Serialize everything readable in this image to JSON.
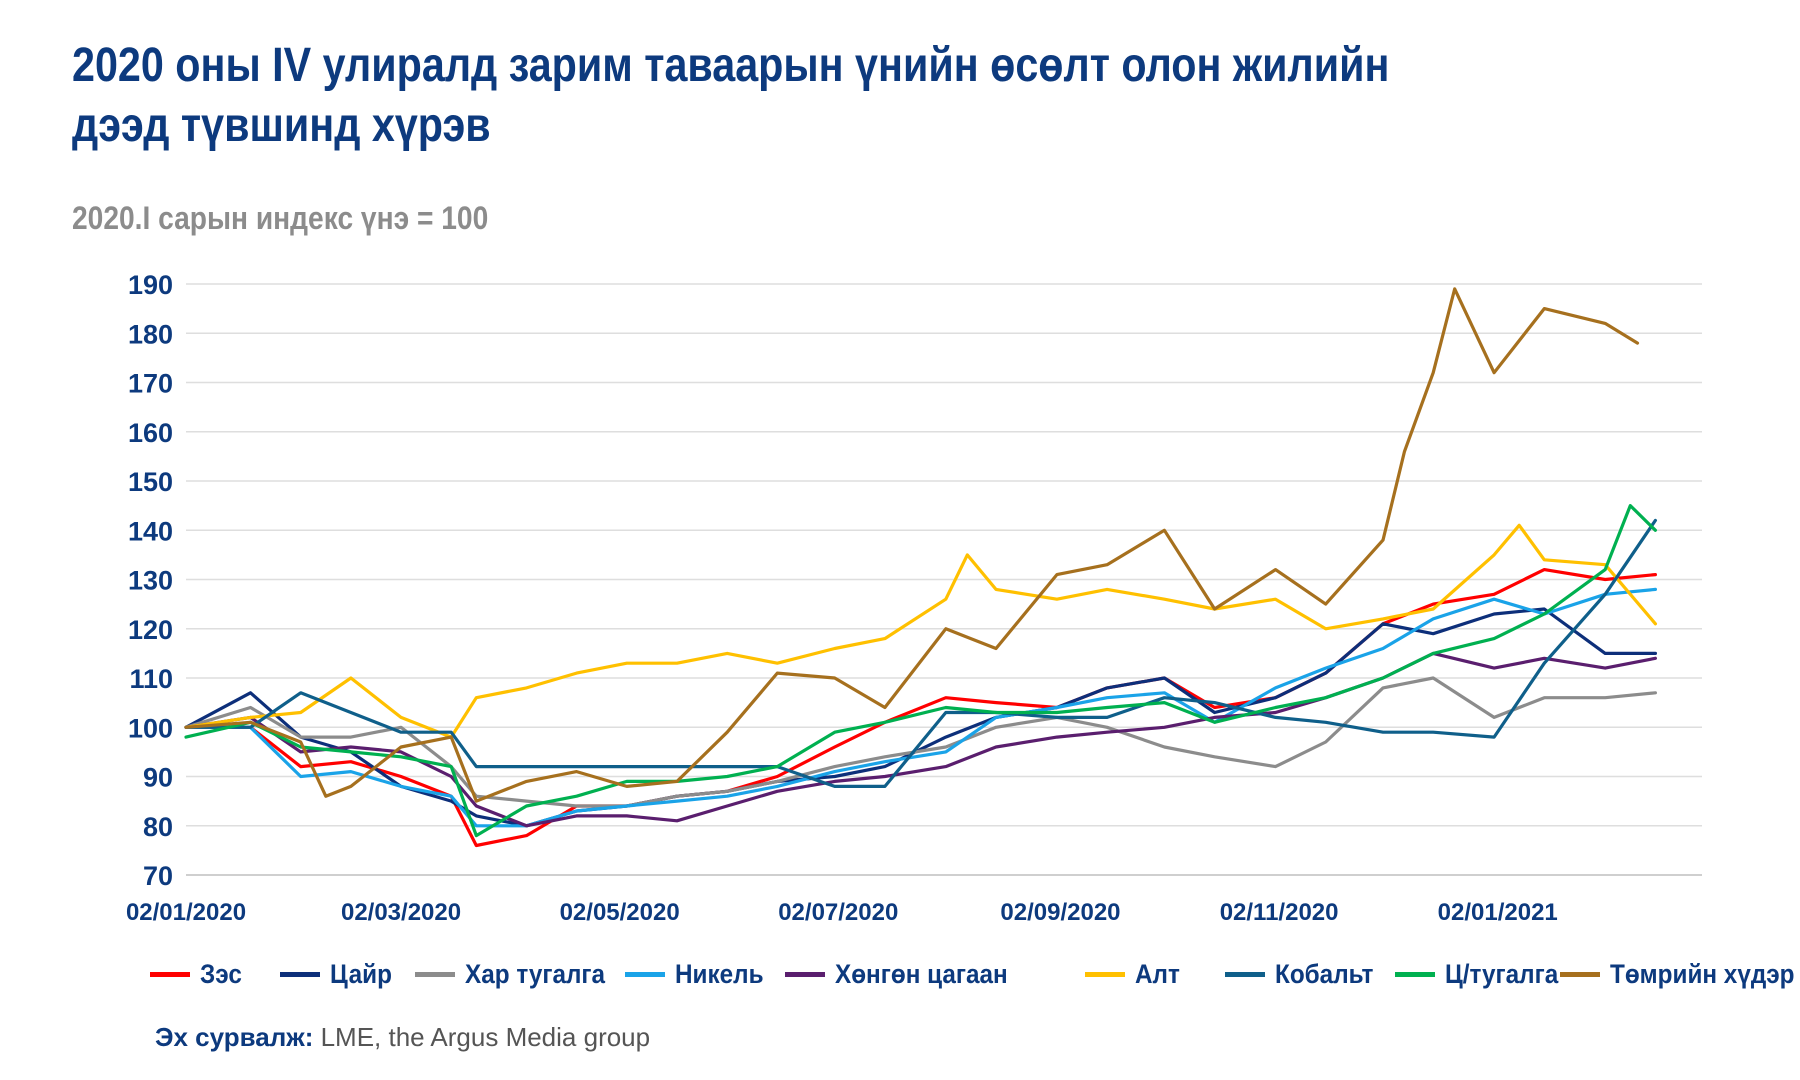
{
  "title_line1": "2020 оны IV улиралд зарим таваарын үнийн өсөлт олон жилийн",
  "title_line2": "дээд түвшинд хүрэв",
  "subtitle": "2020.I сарын индекс үнэ = 100",
  "source": {
    "label": "Эх сурвалж:",
    "text": " LME, the Argus Media group"
  },
  "chart_data": {
    "type": "line",
    "title": "2020 оны IV улиралд зарим таваарын үнийн өсөлт олон жилийн дээд түвшинд хүрэв",
    "subtitle": "2020.I сарын индекс үнэ = 100",
    "xlabel": "",
    "ylabel": "",
    "ylim": [
      70,
      190
    ],
    "yticks": [
      70,
      80,
      90,
      100,
      110,
      120,
      130,
      140,
      150,
      160,
      170,
      180,
      190
    ],
    "xticks": [
      "02/01/2020",
      "02/03/2020",
      "02/05/2020",
      "02/07/2020",
      "02/09/2020",
      "02/11/2020",
      "02/01/2021"
    ],
    "grid": true,
    "legend_position": "bottom",
    "series": [
      {
        "name": "Зэс",
        "color": "#ff0000",
        "x": [
          "2020-01-02",
          "2020-01-20",
          "2020-02-03",
          "2020-02-17",
          "2020-03-02",
          "2020-03-16",
          "2020-03-23",
          "2020-04-06",
          "2020-04-20",
          "2020-05-04",
          "2020-05-18",
          "2020-06-01",
          "2020-06-15",
          "2020-07-01",
          "2020-07-15",
          "2020-08-01",
          "2020-08-15",
          "2020-09-01",
          "2020-09-15",
          "2020-10-01",
          "2020-10-15",
          "2020-11-01",
          "2020-11-15",
          "2020-12-01",
          "2020-12-15",
          "2021-01-01",
          "2021-01-15",
          "2021-02-01",
          "2021-02-15"
        ],
        "values": [
          100,
          100,
          92,
          93,
          90,
          86,
          76,
          78,
          84,
          84,
          86,
          87,
          90,
          96,
          101,
          106,
          105,
          104,
          108,
          110,
          104,
          106,
          111,
          121,
          125,
          127,
          132,
          130,
          131
        ]
      },
      {
        "name": "Цайр",
        "color": "#0d2f7a",
        "x": [
          "2020-01-02",
          "2020-01-20",
          "2020-02-03",
          "2020-02-17",
          "2020-03-02",
          "2020-03-16",
          "2020-03-23",
          "2020-04-06",
          "2020-04-20",
          "2020-05-04",
          "2020-05-18",
          "2020-06-01",
          "2020-06-15",
          "2020-07-01",
          "2020-07-15",
          "2020-08-01",
          "2020-08-15",
          "2020-09-01",
          "2020-09-15",
          "2020-10-01",
          "2020-10-15",
          "2020-11-01",
          "2020-11-15",
          "2020-12-01",
          "2020-12-15",
          "2021-01-01",
          "2021-01-15",
          "2021-02-01",
          "2021-02-15"
        ],
        "values": [
          100,
          107,
          98,
          95,
          88,
          85,
          82,
          80,
          83,
          84,
          86,
          87,
          89,
          90,
          92,
          98,
          102,
          104,
          108,
          110,
          103,
          106,
          111,
          121,
          119,
          123,
          124,
          115,
          115
        ]
      },
      {
        "name": "Хар тугалга",
        "color": "#8c8c8c",
        "x": [
          "2020-01-02",
          "2020-01-20",
          "2020-02-03",
          "2020-02-17",
          "2020-03-02",
          "2020-03-16",
          "2020-03-23",
          "2020-04-06",
          "2020-04-20",
          "2020-05-04",
          "2020-05-18",
          "2020-06-01",
          "2020-06-15",
          "2020-07-01",
          "2020-07-15",
          "2020-08-01",
          "2020-08-15",
          "2020-09-01",
          "2020-09-15",
          "2020-10-01",
          "2020-10-15",
          "2020-11-01",
          "2020-11-15",
          "2020-12-01",
          "2020-12-15",
          "2021-01-01",
          "2021-01-15",
          "2021-02-01",
          "2021-02-15"
        ],
        "values": [
          100,
          104,
          98,
          98,
          100,
          92,
          86,
          85,
          84,
          84,
          86,
          87,
          89,
          92,
          94,
          96,
          100,
          102,
          100,
          96,
          94,
          92,
          97,
          108,
          110,
          102,
          106,
          106,
          107
        ]
      },
      {
        "name": "Никель",
        "color": "#1aa3e8",
        "x": [
          "2020-01-02",
          "2020-01-20",
          "2020-02-03",
          "2020-02-17",
          "2020-03-02",
          "2020-03-16",
          "2020-03-23",
          "2020-04-06",
          "2020-04-20",
          "2020-05-04",
          "2020-05-18",
          "2020-06-01",
          "2020-06-15",
          "2020-07-01",
          "2020-07-15",
          "2020-08-01",
          "2020-08-15",
          "2020-09-01",
          "2020-09-15",
          "2020-10-01",
          "2020-10-15",
          "2020-11-01",
          "2020-11-15",
          "2020-12-01",
          "2020-12-15",
          "2021-01-01",
          "2021-01-15",
          "2021-02-01",
          "2021-02-15"
        ],
        "values": [
          100,
          100,
          90,
          91,
          88,
          86,
          80,
          80,
          83,
          84,
          85,
          86,
          88,
          91,
          93,
          95,
          102,
          104,
          106,
          107,
          101,
          108,
          112,
          116,
          122,
          126,
          123,
          127,
          128
        ]
      },
      {
        "name": "Хөнгөн цагаан",
        "color": "#5a1e6e",
        "x": [
          "2020-01-02",
          "2020-01-20",
          "2020-02-03",
          "2020-02-17",
          "2020-03-02",
          "2020-03-16",
          "2020-03-23",
          "2020-04-06",
          "2020-04-20",
          "2020-05-04",
          "2020-05-18",
          "2020-06-01",
          "2020-06-15",
          "2020-07-01",
          "2020-07-15",
          "2020-08-01",
          "2020-08-15",
          "2020-09-01",
          "2020-09-15",
          "2020-10-01",
          "2020-10-15",
          "2020-11-01",
          "2020-11-15",
          "2020-12-01",
          "2020-12-15",
          "2021-01-01",
          "2021-01-15",
          "2021-02-01",
          "2021-02-15"
        ],
        "values": [
          100,
          102,
          95,
          96,
          95,
          90,
          84,
          80,
          82,
          82,
          81,
          84,
          87,
          89,
          90,
          92,
          96,
          98,
          99,
          100,
          102,
          103,
          106,
          110,
          115,
          112,
          114,
          112,
          114
        ]
      },
      {
        "name": "Алт",
        "color": "#ffc000",
        "x": [
          "2020-01-02",
          "2020-01-20",
          "2020-02-03",
          "2020-02-17",
          "2020-03-02",
          "2020-03-16",
          "2020-03-23",
          "2020-04-06",
          "2020-04-20",
          "2020-05-04",
          "2020-05-18",
          "2020-06-01",
          "2020-06-15",
          "2020-07-01",
          "2020-07-15",
          "2020-08-01",
          "2020-08-07",
          "2020-08-15",
          "2020-09-01",
          "2020-09-15",
          "2020-10-01",
          "2020-10-15",
          "2020-11-01",
          "2020-11-15",
          "2020-12-01",
          "2020-12-15",
          "2021-01-01",
          "2021-01-08",
          "2021-01-15",
          "2021-02-01",
          "2021-02-15"
        ],
        "values": [
          100,
          102,
          103,
          110,
          102,
          98,
          106,
          108,
          111,
          113,
          113,
          115,
          113,
          116,
          118,
          126,
          135,
          128,
          126,
          128,
          126,
          124,
          126,
          120,
          122,
          124,
          135,
          141,
          134,
          133,
          121
        ]
      },
      {
        "name": "Кобальт",
        "color": "#0f5f8a",
        "x": [
          "2020-01-02",
          "2020-01-20",
          "2020-02-03",
          "2020-02-17",
          "2020-03-02",
          "2020-03-16",
          "2020-03-23",
          "2020-04-06",
          "2020-04-20",
          "2020-05-04",
          "2020-05-18",
          "2020-06-01",
          "2020-06-15",
          "2020-07-01",
          "2020-07-15",
          "2020-08-01",
          "2020-08-15",
          "2020-09-01",
          "2020-09-15",
          "2020-10-01",
          "2020-10-15",
          "2020-11-01",
          "2020-11-15",
          "2020-12-01",
          "2020-12-15",
          "2021-01-01",
          "2021-01-15",
          "2021-02-01",
          "2021-02-15"
        ],
        "values": [
          100,
          100,
          107,
          103,
          99,
          99,
          92,
          92,
          92,
          92,
          92,
          92,
          92,
          88,
          88,
          103,
          103,
          102,
          102,
          106,
          105,
          102,
          101,
          99,
          99,
          98,
          113,
          127,
          142
        ]
      },
      {
        "name": "Ц/тугалга",
        "color": "#00b050",
        "x": [
          "2020-01-02",
          "2020-01-20",
          "2020-02-03",
          "2020-02-17",
          "2020-03-02",
          "2020-03-16",
          "2020-03-23",
          "2020-04-06",
          "2020-04-20",
          "2020-05-04",
          "2020-05-18",
          "2020-06-01",
          "2020-06-15",
          "2020-07-01",
          "2020-07-15",
          "2020-08-01",
          "2020-08-15",
          "2020-09-01",
          "2020-09-15",
          "2020-10-01",
          "2020-10-15",
          "2020-11-01",
          "2020-11-15",
          "2020-12-01",
          "2020-12-15",
          "2021-01-01",
          "2021-01-15",
          "2021-02-01",
          "2021-02-08",
          "2021-02-15"
        ],
        "values": [
          98,
          101,
          96,
          95,
          94,
          92,
          78,
          84,
          86,
          89,
          89,
          90,
          92,
          99,
          101,
          104,
          103,
          103,
          104,
          105,
          101,
          104,
          106,
          110,
          115,
          118,
          123,
          132,
          145,
          140
        ]
      },
      {
        "name": "Төмрийн хүдэр",
        "color": "#a6701e",
        "x": [
          "2020-01-02",
          "2020-01-20",
          "2020-02-03",
          "2020-02-10",
          "2020-02-17",
          "2020-03-02",
          "2020-03-16",
          "2020-03-23",
          "2020-04-06",
          "2020-04-20",
          "2020-05-04",
          "2020-05-18",
          "2020-06-01",
          "2020-06-15",
          "2020-07-01",
          "2020-07-15",
          "2020-08-01",
          "2020-08-15",
          "2020-09-01",
          "2020-09-15",
          "2020-10-01",
          "2020-10-15",
          "2020-11-01",
          "2020-11-15",
          "2020-12-01",
          "2020-12-07",
          "2020-12-15",
          "2020-12-21",
          "2021-01-01",
          "2021-01-15",
          "2021-02-01",
          "2021-02-10"
        ],
        "values": [
          100,
          101,
          97,
          86,
          88,
          96,
          98,
          85,
          89,
          91,
          88,
          89,
          99,
          111,
          110,
          104,
          120,
          116,
          131,
          133,
          140,
          124,
          132,
          125,
          138,
          156,
          172,
          189,
          172,
          185,
          182,
          178
        ]
      }
    ]
  }
}
